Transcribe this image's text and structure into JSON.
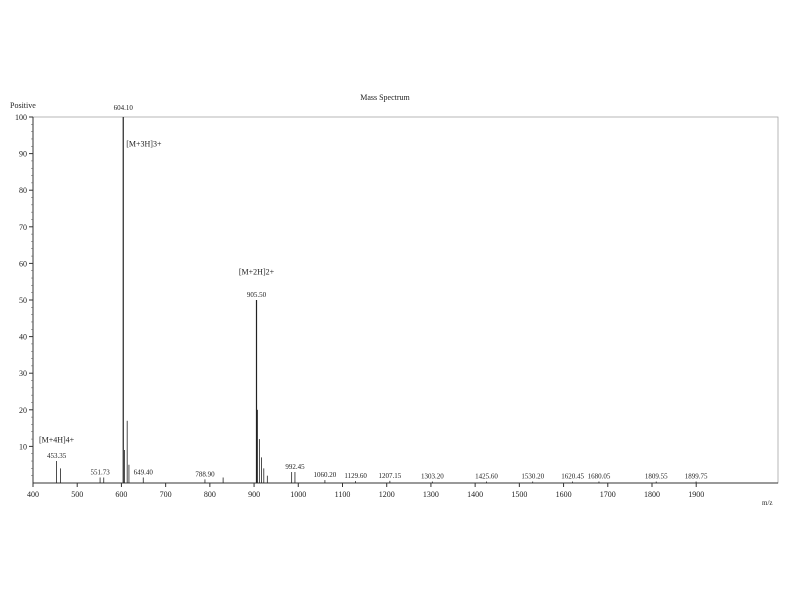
{
  "chart_data": {
    "type": "bar",
    "title": "Mass Spectrum",
    "ylabel": "Positive",
    "xlabel": "m/z",
    "xlim": [
      400,
      2085
    ],
    "ylim": [
      0,
      100
    ],
    "xticks": [
      400,
      500,
      600,
      700,
      800,
      900,
      1000,
      1100,
      1200,
      1300,
      1400,
      1500,
      1600,
      1700,
      1800,
      1900
    ],
    "yticks": [
      10,
      20,
      30,
      40,
      50,
      60,
      70,
      80,
      90,
      100
    ],
    "grid": false,
    "color": "#222222",
    "peaks": [
      {
        "x": 453.35,
        "y": 6,
        "label": "453.35"
      },
      {
        "x": 462,
        "y": 4
      },
      {
        "x": 551.73,
        "y": 1.5,
        "label": "551.73"
      },
      {
        "x": 560,
        "y": 1.5
      },
      {
        "x": 604.1,
        "y": 100,
        "label": "604.10"
      },
      {
        "x": 607,
        "y": 9
      },
      {
        "x": 613,
        "y": 17
      },
      {
        "x": 617,
        "y": 5
      },
      {
        "x": 649.4,
        "y": 1.5,
        "label": "649.40"
      },
      {
        "x": 788.9,
        "y": 1,
        "label": "788.90"
      },
      {
        "x": 830,
        "y": 1.5
      },
      {
        "x": 905.5,
        "y": 50,
        "label": "905.50"
      },
      {
        "x": 908,
        "y": 20
      },
      {
        "x": 912,
        "y": 12
      },
      {
        "x": 917,
        "y": 7
      },
      {
        "x": 922,
        "y": 4
      },
      {
        "x": 930,
        "y": 2
      },
      {
        "x": 985,
        "y": 3
      },
      {
        "x": 992.45,
        "y": 3,
        "label": "992.45"
      },
      {
        "x": 1060.2,
        "y": 0.8,
        "label": "1060.20"
      },
      {
        "x": 1129.6,
        "y": 0.5,
        "label": "1129.60"
      },
      {
        "x": 1207.15,
        "y": 0.6,
        "label": "1207.15"
      },
      {
        "x": 1303.2,
        "y": 0.4,
        "label": "1303.20"
      },
      {
        "x": 1425.6,
        "y": 0.4,
        "label": "1425.60"
      },
      {
        "x": 1530.2,
        "y": 0.4,
        "label": "1530.20"
      },
      {
        "x": 1620.45,
        "y": 0.4,
        "label": "1620.45"
      },
      {
        "x": 1680.05,
        "y": 0.4,
        "label": "1680.05"
      },
      {
        "x": 1809.55,
        "y": 0.4,
        "label": "1809.55"
      },
      {
        "x": 1899.75,
        "y": 0.4,
        "label": "1899.75"
      }
    ],
    "annotations": [
      {
        "text": "[M+3H]3+",
        "x": 604.1,
        "y": 92
      },
      {
        "text": "[M+2H]2+",
        "x": 905.5,
        "y": 57
      },
      {
        "text": "[M+4H]4+",
        "x": 453.35,
        "y": 11
      }
    ]
  }
}
